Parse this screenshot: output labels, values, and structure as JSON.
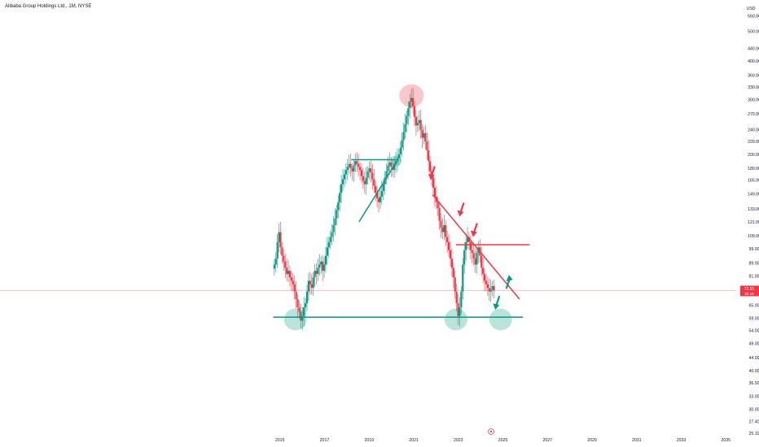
{
  "header": {
    "symbol_title": "Alibaba Group Holdings Ltd., 1M, NYSE"
  },
  "price_axis": {
    "currency_label": "USD"
  },
  "colors": {
    "bull": "#089981",
    "bear": "#f23645",
    "accent_green": "#089981",
    "accent_red": "#f23645",
    "current_price_line": "#f7b1b7"
  },
  "chart_data": {
    "type": "candlestick",
    "y_scale": "log",
    "y_range": [
      25.1,
      600
    ],
    "x_range": [
      2014.5,
      2035.5
    ],
    "y_ticks": [
      560,
      500,
      440,
      400,
      360,
      330,
      300,
      270,
      240,
      220,
      200,
      180,
      165,
      149,
      133,
      121,
      109,
      99,
      89,
      81,
      65,
      59,
      54,
      49,
      44,
      40,
      36.5,
      33,
      30,
      27.4,
      25.1
    ],
    "y_tick_labels": [
      "560.00",
      "500.00",
      "440.00",
      "400.00",
      "360.00",
      "330.00",
      "300.00",
      "270.00",
      "240.00",
      "220.00",
      "200.00",
      "180.00",
      "165.00",
      "149.00",
      "133.00",
      "121.00",
      "109.00",
      "99.00",
      "89.00",
      "81.00",
      "65.00",
      "59.00",
      "54.00",
      "49.00",
      "44.00",
      "40.00",
      "36.50",
      "33.00",
      "30.00",
      "27.40",
      "25.10"
    ],
    "x_ticks": [
      "2015",
      "2017",
      "2019",
      "2021",
      "2023",
      "2025",
      "2027",
      "2029",
      "2031",
      "2033",
      "2035"
    ],
    "current_price": {
      "label": "72.55",
      "countdown": "30 16",
      "value": 72.55
    },
    "closes": [
      88,
      92,
      104,
      112,
      100,
      94,
      90,
      86,
      82,
      84,
      80,
      78,
      76,
      72,
      68,
      64,
      62,
      58,
      60,
      64,
      66,
      72,
      78,
      76,
      74,
      80,
      84,
      82,
      86,
      88,
      90,
      84,
      88,
      94,
      100,
      104,
      108,
      112,
      118,
      124,
      132,
      140,
      150,
      160,
      166,
      172,
      178,
      182,
      186,
      180,
      176,
      184,
      190,
      186,
      182,
      178,
      170,
      164,
      160,
      168,
      176,
      180,
      174,
      166,
      158,
      150,
      144,
      140,
      146,
      152,
      160,
      168,
      176,
      184,
      188,
      182,
      178,
      186,
      190,
      194,
      200,
      210,
      222,
      236,
      250,
      266,
      282,
      296,
      304,
      286,
      264,
      248,
      252,
      258,
      240,
      226,
      234,
      220,
      206,
      190,
      176,
      168,
      156,
      146,
      140,
      134,
      122,
      116,
      112,
      118,
      108,
      104,
      98,
      92,
      86,
      80,
      72,
      66,
      60,
      64,
      72,
      88,
      98,
      104,
      108,
      104,
      98,
      96,
      92,
      88,
      96,
      100,
      94,
      86,
      82,
      78,
      76,
      74,
      72,
      73,
      75,
      72.55
    ]
  },
  "annotations": [
    {
      "type": "line",
      "color": "accent_green",
      "name": "support-line",
      "from": [
        2014.7,
        59.5
      ],
      "to": [
        2025.9,
        59.5
      ]
    },
    {
      "type": "line",
      "color": "accent_green",
      "name": "top-horizontal-line",
      "from": [
        2018.2,
        192
      ],
      "to": [
        2020.2,
        192
      ]
    },
    {
      "type": "line",
      "color": "accent_green",
      "name": "rising-trendline",
      "from": [
        2018.55,
        121
      ],
      "to": [
        2020.25,
        190
      ]
    },
    {
      "type": "line",
      "color": "accent_red",
      "name": "falling-trendline",
      "from": [
        2021.85,
        148
      ],
      "to": [
        2025.75,
        68
      ]
    },
    {
      "type": "line",
      "color": "accent_red",
      "name": "resistance-line",
      "from": [
        2022.9,
        102
      ],
      "to": [
        2026.2,
        102
      ]
    },
    {
      "type": "ellipse",
      "color": "accent_red",
      "name": "peak-highlight",
      "at": [
        2020.9,
        309
      ]
    },
    {
      "type": "ellipse",
      "color": "accent_green",
      "name": "low-2016-highlight",
      "at": [
        2015.7,
        58.5
      ]
    },
    {
      "type": "ellipse",
      "color": "accent_green",
      "name": "low-2022-highlight",
      "at": [
        2022.9,
        58.5
      ]
    },
    {
      "type": "ellipse",
      "color": "accent_green",
      "name": "target-2025-highlight",
      "at": [
        2024.9,
        58.5
      ]
    },
    {
      "type": "ellipse",
      "color": "accent_green",
      "name": "mid-2020-highlight",
      "at": [
        2020.2,
        190
      ]
    },
    {
      "type": "arrow",
      "color": "accent_red",
      "name": "down-arrow-1",
      "at": [
        2021.8,
        168
      ]
    },
    {
      "type": "arrow",
      "color": "accent_red",
      "name": "down-arrow-2",
      "at": [
        2023.1,
        128
      ]
    },
    {
      "type": "arrow",
      "color": "accent_red",
      "name": "down-arrow-3",
      "at": [
        2023.7,
        110
      ]
    },
    {
      "type": "arrow",
      "color": "accent_green",
      "name": "down-arrow-green",
      "at": [
        2024.7,
        64
      ]
    },
    {
      "type": "arrow",
      "color": "accent_green",
      "name": "up-arrow-green",
      "at": [
        2025.3,
        80
      ]
    }
  ]
}
